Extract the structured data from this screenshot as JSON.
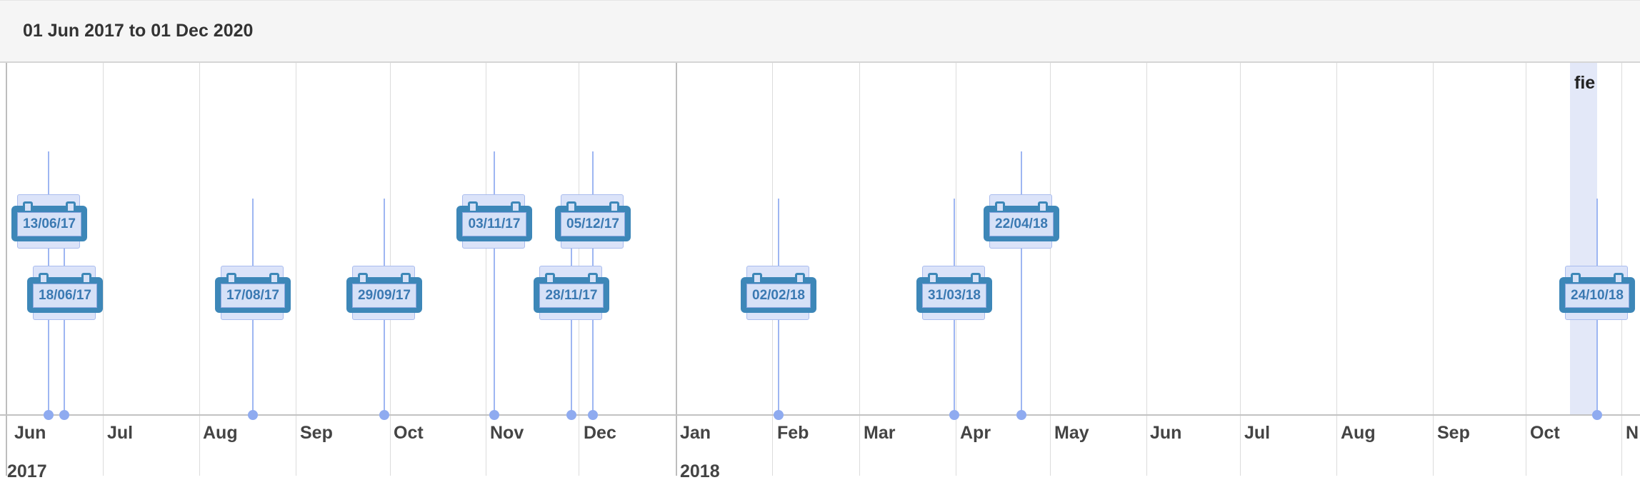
{
  "header": {
    "title": "01 Jun 2017 to 01 Dec 2020"
  },
  "axis": {
    "months": [
      "Jun",
      "Jul",
      "Aug",
      "Sep",
      "Oct",
      "Nov",
      "Dec",
      "Jan",
      "Feb",
      "Mar",
      "Apr",
      "May",
      "Jun",
      "Jul",
      "Aug",
      "Sep",
      "Oct",
      "N"
    ],
    "years": [
      "2017",
      "2018"
    ]
  },
  "highlight": {
    "label": "fie"
  },
  "events": [
    "13/06/17",
    "18/06/17",
    "17/08/17",
    "29/09/17",
    "03/11/17",
    "28/11/17",
    "05/12/17",
    "02/02/18",
    "31/03/18",
    "22/04/18",
    "24/10/18"
  ],
  "colors": {
    "calendar": "#3d87b8",
    "marker": "#8fabf0",
    "band": "#e3e8f8"
  }
}
